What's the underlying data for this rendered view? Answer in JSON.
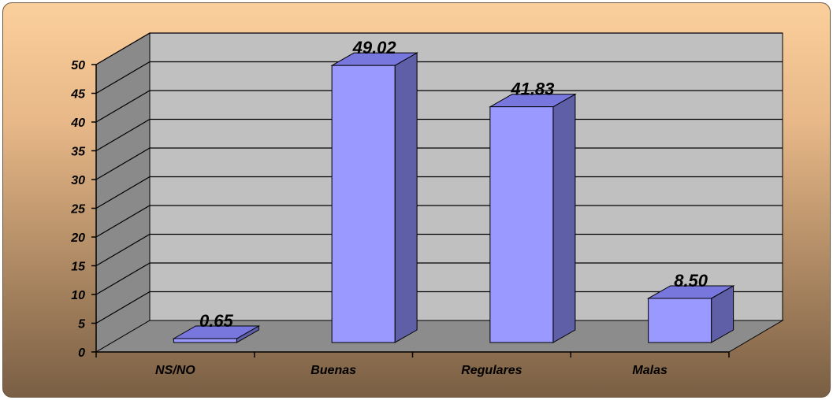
{
  "chart_data": {
    "type": "bar",
    "categories": [
      "NS/NO",
      "Buenas",
      "Regulares",
      "Malas"
    ],
    "values": [
      0.65,
      49.02,
      41.83,
      8.5
    ],
    "value_labels": [
      "0.65",
      "49.02",
      "41.83",
      "8.50"
    ],
    "ylim": [
      0,
      50
    ],
    "yticks": [
      "0",
      "5",
      "10",
      "15",
      "20",
      "25",
      "30",
      "35",
      "40",
      "45",
      "50"
    ],
    "title": "",
    "xlabel": "",
    "ylabel": "",
    "grid": true,
    "legend": "none",
    "style": "3d-column",
    "colors": {
      "bar_front": "#9999ff",
      "bar_side": "#5f5fa8",
      "bar_top": "#7777dd",
      "wall": "#c0c0c0",
      "side_wall": "#8a8a8a",
      "floor": "#8c8c8c",
      "background_top": "#fbcf9b",
      "background_bottom": "#7a5f44"
    }
  }
}
